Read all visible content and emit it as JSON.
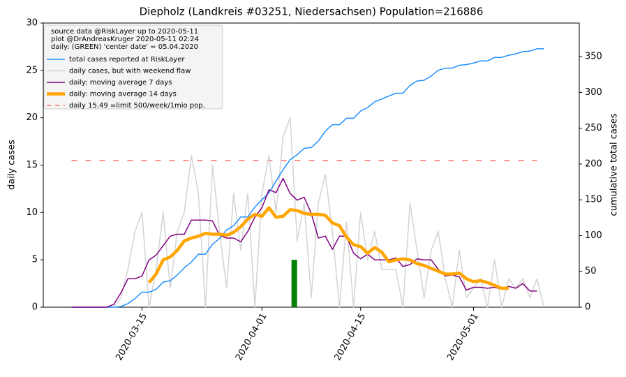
{
  "chart_data": {
    "type": "line",
    "title": "Diepholz (Landkreis #03251, Niedersachsen) Population=216886",
    "ylabel": "daily cases",
    "ylabel_color": "purple",
    "y2label": "cumulative total cases",
    "y2label_color": "#1e90ff",
    "legend_header": [
      "source data @RiskLayer up to 2020-05-11",
      "plot @DrAndreasKruger 2020-05-11 02:24",
      "daily: (GREEN) 'center date' = 05.04.2020"
    ],
    "legend_loc": "upper left",
    "xlim": [
      "2020-03-01",
      "2020-05-16"
    ],
    "xticks": [
      "2020-03-15",
      "2020-04-01",
      "2020-04-15",
      "2020-05-01"
    ],
    "ylim": [
      0,
      30
    ],
    "yticks": [
      0,
      5,
      10,
      15,
      20,
      25,
      30
    ],
    "y2lim": [
      0,
      397
    ],
    "y2ticks": [
      0,
      50,
      100,
      150,
      200,
      250,
      300,
      350
    ],
    "x": [
      "2020-03-05",
      "2020-03-06",
      "2020-03-07",
      "2020-03-08",
      "2020-03-09",
      "2020-03-10",
      "2020-03-11",
      "2020-03-12",
      "2020-03-13",
      "2020-03-14",
      "2020-03-15",
      "2020-03-16",
      "2020-03-17",
      "2020-03-18",
      "2020-03-19",
      "2020-03-20",
      "2020-03-21",
      "2020-03-22",
      "2020-03-23",
      "2020-03-24",
      "2020-03-25",
      "2020-03-26",
      "2020-03-27",
      "2020-03-28",
      "2020-03-29",
      "2020-03-30",
      "2020-03-31",
      "2020-04-01",
      "2020-04-02",
      "2020-04-03",
      "2020-04-04",
      "2020-04-05",
      "2020-04-06",
      "2020-04-07",
      "2020-04-08",
      "2020-04-09",
      "2020-04-10",
      "2020-04-11",
      "2020-04-12",
      "2020-04-13",
      "2020-04-14",
      "2020-04-15",
      "2020-04-16",
      "2020-04-17",
      "2020-04-18",
      "2020-04-19",
      "2020-04-20",
      "2020-04-21",
      "2020-04-22",
      "2020-04-23",
      "2020-04-24",
      "2020-04-25",
      "2020-04-26",
      "2020-04-27",
      "2020-04-28",
      "2020-04-29",
      "2020-04-30",
      "2020-05-01",
      "2020-05-02",
      "2020-05-03",
      "2020-05-04",
      "2020-05-05",
      "2020-05-06",
      "2020-05-07",
      "2020-05-08",
      "2020-05-09",
      "2020-05-10",
      "2020-05-11"
    ],
    "series": [
      {
        "name": "total cases reported at RiskLayer",
        "color": "#1e90ff",
        "width": 1.5,
        "axis": "y2",
        "values": [
          0,
          0,
          0,
          0,
          0,
          0,
          0,
          1,
          5,
          12,
          21,
          21,
          25,
          35,
          37,
          45,
          55,
          63,
          74,
          74,
          88,
          96,
          108,
          114,
          126,
          126,
          140,
          150,
          160,
          176,
          192,
          206,
          213,
          222,
          223,
          232,
          246,
          255,
          255,
          264,
          264,
          274,
          279,
          287,
          291,
          295,
          299,
          299,
          310,
          316,
          317,
          323,
          331,
          334,
          334,
          338,
          339,
          341,
          344,
          344,
          349,
          349,
          352,
          354,
          357,
          358,
          361,
          361
        ]
      },
      {
        "name": "daily cases, but with weekend flaw",
        "color": "#d3d3d3",
        "width": 1.5,
        "values": [
          0,
          0,
          0,
          0,
          0,
          0,
          0,
          1,
          4,
          8,
          10,
          0,
          4,
          10,
          2,
          8,
          10,
          16,
          12,
          0,
          15,
          8,
          2,
          12,
          6,
          12,
          0,
          12,
          16,
          10,
          18,
          20,
          7,
          11,
          1,
          11,
          14,
          8,
          0,
          9,
          0,
          10,
          5,
          8,
          4,
          4,
          4,
          0,
          11,
          6,
          1,
          6,
          8,
          3,
          0,
          6,
          1,
          2,
          3,
          0,
          5,
          0,
          3,
          2,
          3,
          1,
          3,
          0
        ]
      },
      {
        "name": "daily: moving average 7 days",
        "color": "purple",
        "width": 1.5,
        "values": [
          0,
          0,
          0,
          0,
          0,
          0,
          0.3,
          1.5,
          3,
          3,
          3.3,
          5,
          5.5,
          6.5,
          7.5,
          7.7,
          7.7,
          9.2,
          9.2,
          9.2,
          9.1,
          7.6,
          7.3,
          7.3,
          6.9,
          8,
          9.5,
          10.5,
          12.4,
          12.1,
          13.6,
          12,
          11.3,
          11.6,
          9.9,
          7.3,
          7.5,
          6.1,
          7.5,
          7.5,
          5.7,
          5.1,
          5.6,
          5,
          5,
          5,
          5.2,
          4.3,
          4.5,
          5.1,
          5,
          5,
          4,
          3.3,
          3.4,
          3.2,
          1.8,
          2.1,
          2.1,
          2,
          2.1,
          1.9,
          2.2,
          2.0,
          2.5,
          1.7,
          1.7,
          null
        ]
      },
      {
        "name": "daily: moving average 14 days",
        "color": "orange",
        "width": 4.5,
        "values": [
          null,
          null,
          null,
          null,
          null,
          null,
          null,
          null,
          null,
          null,
          null,
          2.6,
          3.5,
          5,
          5.3,
          6.0,
          7.0,
          7.3,
          7.5,
          7.8,
          7.7,
          7.7,
          7.6,
          7.9,
          8.5,
          9.3,
          9.8,
          9.6,
          10.5,
          9.5,
          9.6,
          10.3,
          10.2,
          9.9,
          9.8,
          9.8,
          9.7,
          8.9,
          8.6,
          7.4,
          6.6,
          6.4,
          5.7,
          6.3,
          5.8,
          4.8,
          5,
          5.1,
          5,
          4.6,
          4.4,
          4.1,
          3.8,
          3.5,
          3.5,
          3.6,
          3.0,
          2.7,
          2.8,
          2.6,
          2.3,
          2.0,
          2.0,
          null,
          null,
          null,
          null,
          null
        ]
      }
    ],
    "limit": {
      "name": "daily 15.49 =limit 500/week/1mio pop.",
      "value": 15.49,
      "color": "#ff7070",
      "x": [
        "2020-03-05",
        "2020-05-10"
      ]
    },
    "marker": {
      "x": "2020-04-05",
      "value": 5,
      "color": "green"
    }
  }
}
